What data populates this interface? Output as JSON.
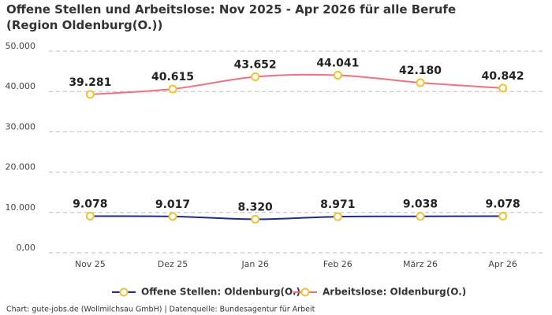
{
  "chart_data": {
    "type": "line",
    "title": "Offene Stellen und Arbeitslose: Nov 2025 - Apr 2026 für alle Berufe (Region Oldenburg(O.))",
    "categories": [
      "Nov 25",
      "Dez 25",
      "Jan 26",
      "Feb 26",
      "März 26",
      "Apr 26"
    ],
    "series": [
      {
        "name": "Offene Stellen: Oldenburg(O.)",
        "color": "#1f2a8c",
        "values": [
          9078,
          9017,
          8320,
          8971,
          9038,
          9078
        ],
        "value_labels": [
          "9.078",
          "9.017",
          "8.320",
          "8.971",
          "9.038",
          "9.078"
        ]
      },
      {
        "name": "Arbeitslose: Oldenburg(O.)",
        "color": "#f07282",
        "values": [
          39281,
          40615,
          43652,
          44041,
          42180,
          40842
        ],
        "value_labels": [
          "39.281",
          "40.615",
          "43.652",
          "44.041",
          "42.180",
          "40.842"
        ]
      }
    ],
    "marker_color": "#f2c230",
    "ylim": [
      0,
      50000
    ],
    "yticks": [
      {
        "value": 0,
        "label": "0,00"
      },
      {
        "value": 10000,
        "label": "10.000"
      },
      {
        "value": 20000,
        "label": "20.000"
      },
      {
        "value": 30000,
        "label": "30.000"
      },
      {
        "value": 40000,
        "label": "40.000"
      },
      {
        "value": 50000,
        "label": "50.000"
      }
    ],
    "grid": true,
    "credit": "Chart: gute-jobs.de (Wollmilchsau GmbH) | Datenquelle: Bundesagentur für Arbeit"
  }
}
